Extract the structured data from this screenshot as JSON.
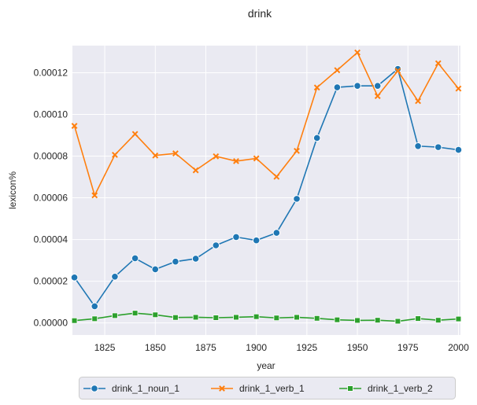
{
  "chart_data": {
    "type": "line",
    "title": "drink",
    "xlabel": "year",
    "ylabel": "lexicon%",
    "x": [
      1810,
      1820,
      1830,
      1840,
      1850,
      1860,
      1870,
      1880,
      1890,
      1900,
      1910,
      1920,
      1930,
      1940,
      1950,
      1960,
      1970,
      1980,
      1990,
      2000
    ],
    "xlim": [
      1809,
      2001
    ],
    "ylim": [
      -5.8e-06,
      0.000133
    ],
    "x_ticks": [
      "1825",
      "1850",
      "1875",
      "1900",
      "1925",
      "1950",
      "1975",
      "2000"
    ],
    "y_ticks": [
      "0.00000",
      "0.00002",
      "0.00004",
      "0.00006",
      "0.00008",
      "0.00010",
      "0.00012"
    ],
    "grid": true,
    "legend_position": "bottom-center",
    "series": [
      {
        "name": "drink_1_noun_1",
        "color": "#1f77b4",
        "marker": "circle",
        "values": [
          2.18e-05,
          8e-06,
          2.22e-05,
          3.1e-05,
          2.57e-05,
          2.94e-05,
          3.08e-05,
          3.72e-05,
          4.12e-05,
          3.96e-05,
          4.32e-05,
          5.95e-05,
          8.87e-05,
          0.000113,
          0.0001137,
          0.0001137,
          0.0001218,
          8.48e-05,
          8.43e-05,
          8.3e-05
        ]
      },
      {
        "name": "drink_1_verb_1",
        "color": "#ff7f0e",
        "marker": "x",
        "values": [
          9.45e-05,
          6.12e-05,
          8.06e-05,
          9.06e-05,
          8.03e-05,
          8.13e-05,
          7.32e-05,
          7.99e-05,
          7.76e-05,
          7.89e-05,
          7.01e-05,
          8.25e-05,
          0.0001129,
          0.0001212,
          0.0001297,
          0.0001088,
          0.0001209,
          0.0001064,
          0.0001245,
          0.0001124
        ]
      },
      {
        "name": "drink_1_verb_2",
        "color": "#2ca02c",
        "marker": "square",
        "values": [
          1.1e-06,
          2e-06,
          3.5e-06,
          4.7e-06,
          3.9e-06,
          2.6e-06,
          2.7e-06,
          2.5e-06,
          2.7e-06,
          3e-06,
          2.4e-06,
          2.7e-06,
          2.2e-06,
          1.5e-06,
          1.2e-06,
          1.3e-06,
          8e-07,
          2.1e-06,
          1.3e-06,
          1.9e-06
        ]
      }
    ]
  }
}
